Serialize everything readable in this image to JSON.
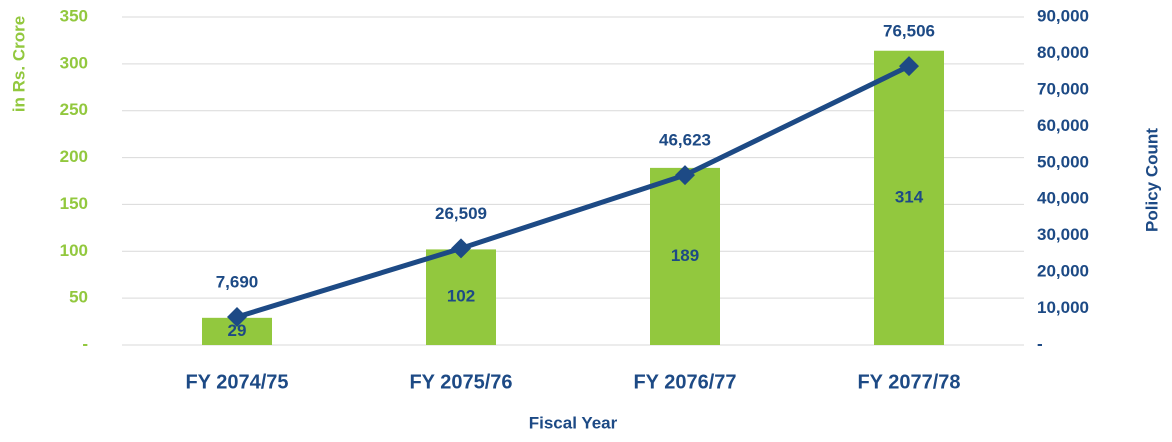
{
  "chart_data": {
    "type": "bar-line",
    "xlabel": "Fiscal Year",
    "ylabel": "in Rs. Crore",
    "y2label": "Policy Count",
    "categories": [
      "FY 2074/75",
      "FY 2075/76",
      "FY 2076/77",
      "FY 2077/78"
    ],
    "series": [
      {
        "type": "bar",
        "color": "#92c83e",
        "values": [
          29,
          102,
          189,
          314
        ]
      },
      {
        "type": "line",
        "axis": "y2",
        "color": "#1d4a85",
        "values": [
          7690,
          26509,
          46623,
          76506
        ],
        "value_labels": [
          "7,690",
          "26,509",
          "46,623",
          "76,506"
        ]
      }
    ],
    "ylim": [
      0,
      350
    ],
    "yticks": [
      {
        "value": 0,
        "label": "-"
      },
      50,
      100,
      150,
      200,
      250,
      300,
      350
    ],
    "y2lim": [
      0,
      90000
    ],
    "y2ticks": [
      {
        "value": 0,
        "label": "-"
      },
      {
        "value": 10000,
        "label": "10,000"
      },
      {
        "value": 20000,
        "label": "20,000"
      },
      {
        "value": 30000,
        "label": "30,000"
      },
      {
        "value": 40000,
        "label": "40,000"
      },
      {
        "value": 50000,
        "label": "50,000"
      },
      {
        "value": 60000,
        "label": "60,000"
      },
      {
        "value": 70000,
        "label": "70,000"
      },
      {
        "value": 80000,
        "label": "80,000"
      },
      {
        "value": 90000,
        "label": "90,000"
      }
    ],
    "grid": true
  }
}
